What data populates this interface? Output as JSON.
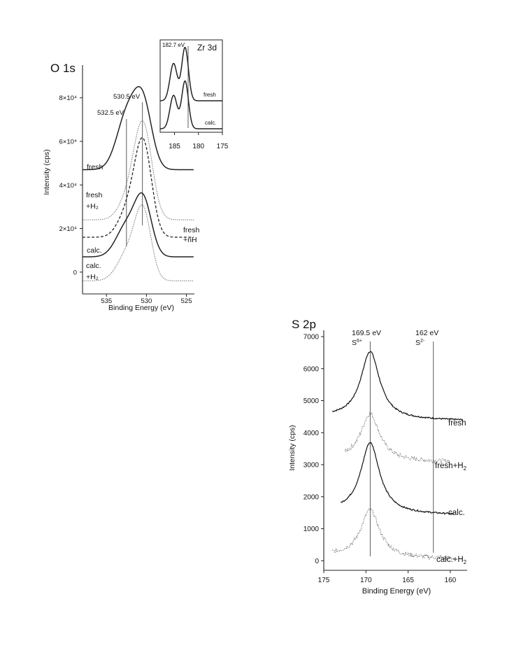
{
  "chart_data": [
    {
      "id": "o1s",
      "type": "line",
      "title": "O 1s",
      "xlabel": "Binding Energy (eV)",
      "ylabel": "Intensity (cps)",
      "xlim": [
        538,
        524
      ],
      "ylim": [
        -10000,
        95000
      ],
      "x_ticks": [
        535,
        530,
        525
      ],
      "y_ticks": [
        0,
        20000,
        40000,
        60000,
        80000
      ],
      "y_tick_labels": [
        "0",
        "2×10⁴",
        "4×10⁴",
        "6×10⁴",
        "8×10⁴"
      ],
      "reference_lines": [
        {
          "x": 530.5,
          "label": "530.5 eV"
        },
        {
          "x": 532.5,
          "label": "532.5 eV"
        }
      ],
      "series": [
        {
          "name": "fresh",
          "style": "solid",
          "offset": 47000,
          "peaks": [
            {
              "center": 532.4,
              "height": 25000,
              "width": 1.3
            },
            {
              "center": 530.4,
              "height": 28000,
              "width": 1.1
            }
          ]
        },
        {
          "name": "fresh +H₂",
          "label_main": "fresh",
          "label_sub": "+H₂",
          "style": "dotted",
          "offset": 24000,
          "peaks": [
            {
              "center": 532.2,
              "height": 10000,
              "width": 1.2
            },
            {
              "center": 530.4,
              "height": 42000,
              "width": 1.1
            }
          ]
        },
        {
          "name": "fresh +nH",
          "label_main": "fresh",
          "label_sub": "+nH",
          "style": "dashed",
          "offset": 16000,
          "peaks": [
            {
              "center": 532.3,
              "height": 12000,
              "width": 1.2
            },
            {
              "center": 530.4,
              "height": 42000,
              "width": 1.05
            }
          ]
        },
        {
          "name": "calc.",
          "style": "solid",
          "offset": 7000,
          "peaks": [
            {
              "center": 532.5,
              "height": 14000,
              "width": 1.3
            },
            {
              "center": 530.4,
              "height": 25000,
              "width": 1.05
            }
          ]
        },
        {
          "name": "calc. +H₂",
          "label_main": "calc.",
          "label_sub": "+H₂",
          "style": "dotted",
          "offset": -4000,
          "peaks": [
            {
              "center": 532.3,
              "height": 13000,
              "width": 1.3
            },
            {
              "center": 530.4,
              "height": 30000,
              "width": 1.0
            }
          ]
        }
      ]
    },
    {
      "id": "zr3d",
      "type": "line",
      "title": "Zr 3d",
      "xlim": [
        188,
        175
      ],
      "x_ticks": [
        185,
        180,
        175
      ],
      "reference_lines": [
        {
          "x": 182.7,
          "label": "182.7 eV"
        }
      ],
      "series": [
        {
          "name": "fresh",
          "style": "solid"
        },
        {
          "name": "calc.",
          "style": "solid"
        }
      ]
    },
    {
      "id": "s2p",
      "type": "line",
      "title": "S 2p",
      "xlabel": "Binding Energy (eV)",
      "ylabel": "Intensity (cps)",
      "xlim": [
        175,
        158
      ],
      "ylim": [
        -300,
        7000
      ],
      "x_ticks": [
        175,
        170,
        165,
        160
      ],
      "y_ticks": [
        0,
        1000,
        2000,
        3000,
        4000,
        5000,
        6000,
        7000
      ],
      "reference_lines": [
        {
          "x": 169.5,
          "label": "169.5 eV",
          "species_base": "S",
          "species_sup": "6+"
        },
        {
          "x": 162,
          "label": "162 eV",
          "species_base": "S",
          "species_sup": "2-"
        }
      ],
      "series": [
        {
          "name": "fresh",
          "style": "solid",
          "baseline": 4400,
          "peak": 6500,
          "x_start": 174,
          "x_end": 158.5
        },
        {
          "name": "fresh+H₂",
          "label_main": "fresh+H",
          "label_sub": "2",
          "style": "dotted",
          "baseline": 3100,
          "peak": 4550,
          "x_start": 172.5,
          "x_end": 160
        },
        {
          "name": "calc.",
          "style": "solid",
          "baseline": 1450,
          "peak": 3650,
          "x_start": 173,
          "x_end": 159.5
        },
        {
          "name": "calc.+H₂",
          "label_main": "calc.+H",
          "label_sub": "2",
          "style": "dotted",
          "baseline": 80,
          "peak": 1550,
          "x_start": 174,
          "x_end": 159.5
        }
      ]
    }
  ]
}
